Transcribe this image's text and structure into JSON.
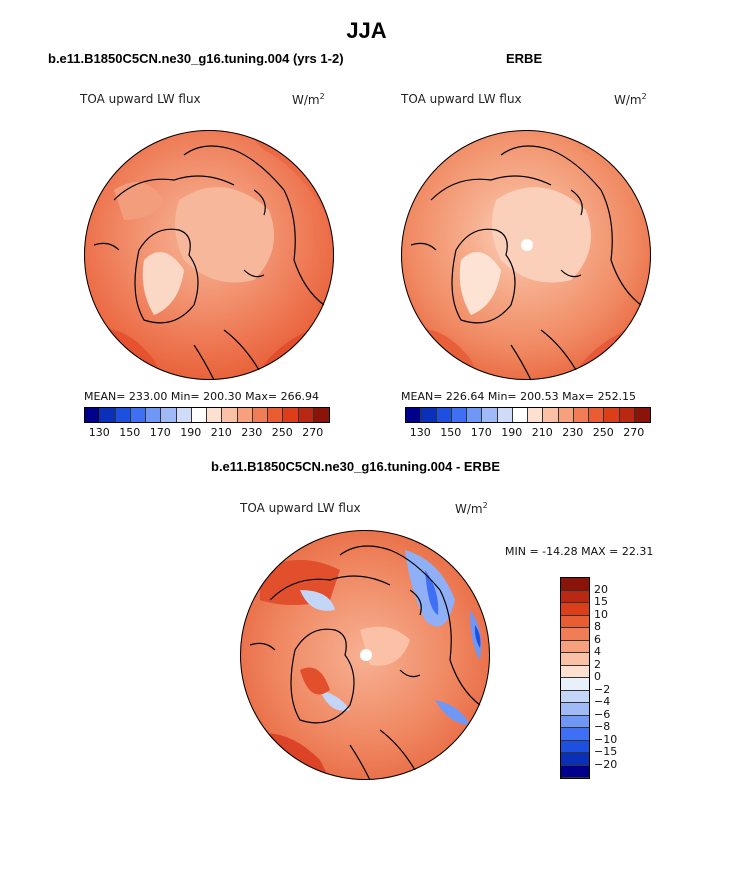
{
  "page_title": "JJA",
  "panels": [
    {
      "header": "b.e11.B1850C5CN.ne30_g16.tuning.004 (yrs 1-2)",
      "label_left": "TOA upward LW flux",
      "label_units": "W/m",
      "label_units_exp": "2",
      "stats": "MEAN= 233.00  Min= 200.30  Max= 266.94"
    },
    {
      "header": "ERBE",
      "label_left": "TOA upward LW flux",
      "label_units": "W/m",
      "label_units_exp": "2",
      "stats": "MEAN= 226.64  Min= 200.53  Max= 252.15"
    },
    {
      "header": "b.e11.B1850C5CN.ne30_g16.tuning.004 - ERBE",
      "label_left": "TOA upward LW flux",
      "label_units": "W/m",
      "label_units_exp": "2",
      "stats": "MIN = -14.28 MAX =  22.31"
    }
  ],
  "colorbar_abs": {
    "ticks": [
      "130",
      "150",
      "170",
      "190",
      "210",
      "230",
      "250",
      "270"
    ],
    "colors": [
      "#00008b",
      "#0a2fb8",
      "#1e50e0",
      "#3f6ff2",
      "#6f97f5",
      "#9fbaf7",
      "#cfdcf9",
      "#ffffff",
      "#fde0cf",
      "#fbc1a6",
      "#f6a07e",
      "#f07d55",
      "#ea5d33",
      "#dc3e1a",
      "#b82812",
      "#8a1409"
    ]
  },
  "colorbar_diff": {
    "ticks": [
      "20",
      "15",
      "10",
      "8",
      "6",
      "4",
      "2",
      "0",
      "−2",
      "−4",
      "−6",
      "−8",
      "−10",
      "−15",
      "−20"
    ],
    "colors": [
      "#8a1409",
      "#b82812",
      "#dc3e1a",
      "#ea5d33",
      "#f07d55",
      "#f6a07e",
      "#fbc1a6",
      "#fde0cf",
      "#e8f0fc",
      "#c4d6f8",
      "#9fbaf7",
      "#6f97f5",
      "#3f6ff2",
      "#1e50e0",
      "#0a2fb8",
      "#00008b"
    ]
  }
}
